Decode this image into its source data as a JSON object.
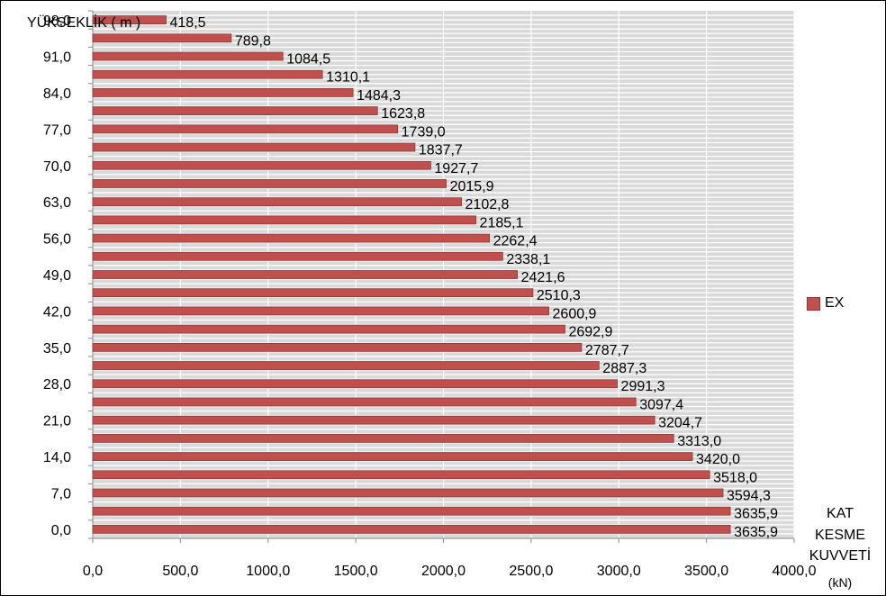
{
  "chart_data": {
    "type": "bar",
    "orientation": "horizontal",
    "title": "",
    "ylabel": "YÜKSEKLİK ( m )",
    "xlabel_lines": [
      "KAT",
      "KESME",
      "KUVVETİ",
      "(kN)"
    ],
    "xlim": [
      0,
      4000
    ],
    "xticks": [
      "0,0",
      "500,0",
      "1000,0",
      "1500,0",
      "2000,0",
      "2500,0",
      "3000,0",
      "3500,0",
      "4000,0"
    ],
    "yticks": [
      "98,0",
      "91,0",
      "84,0",
      "77,0",
      "70,0",
      "63,0",
      "56,0",
      "49,0",
      "42,0",
      "35,0",
      "28,0",
      "21,0",
      "14,0",
      "7,0",
      "0,0"
    ],
    "grid": true,
    "legend_position": "right",
    "series": [
      {
        "name": "EX",
        "color": "#c0504d",
        "values": [
          418.5,
          789.8,
          1084.5,
          1310.1,
          1484.3,
          1623.8,
          1739.0,
          1837.7,
          1927.7,
          2015.9,
          2102.8,
          2185.1,
          2262.4,
          2338.1,
          2421.6,
          2510.3,
          2600.9,
          2692.9,
          2787.7,
          2887.3,
          2991.3,
          3097.4,
          3204.7,
          3313.0,
          3420.0,
          3518.0,
          3594.3,
          3635.9,
          3635.9
        ],
        "labels": [
          "418,5",
          "789,8",
          "1084,5",
          "1310,1",
          "1484,3",
          "1623,8",
          "1739,0",
          "1837,7",
          "1927,7",
          "2015,9",
          "2102,8",
          "2185,1",
          "2262,4",
          "2338,1",
          "2421,6",
          "2510,3",
          "2600,9",
          "2692,9",
          "2787,7",
          "2887,3",
          "2991,3",
          "3097,4",
          "3204,7",
          "3313,0",
          "3420,0",
          "3518,0",
          "3594,3",
          "3635,9",
          "3635,9"
        ]
      }
    ]
  }
}
